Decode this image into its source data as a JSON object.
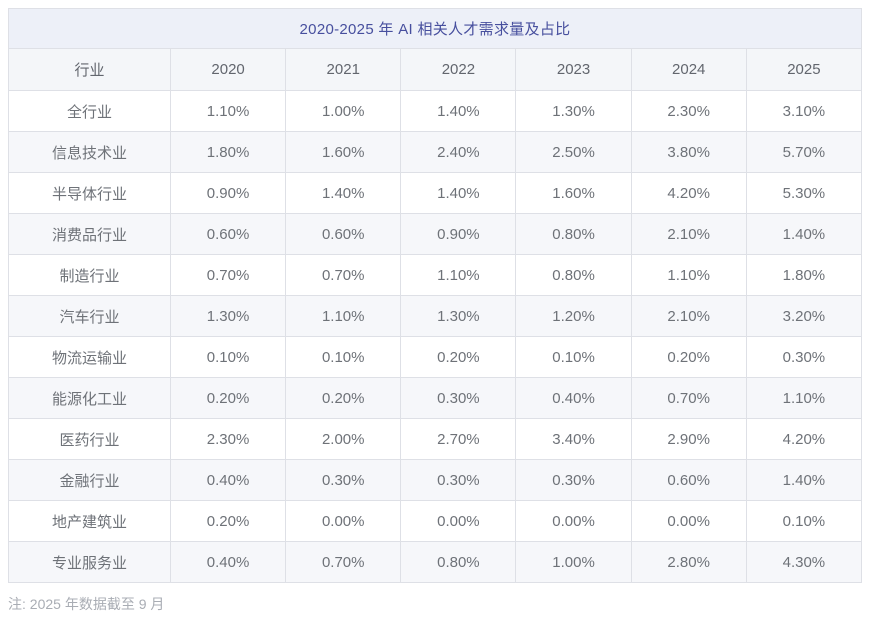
{
  "chart_data": {
    "type": "table",
    "title": "2020-2025 年 AI 相关人才需求量及占比",
    "columns": [
      "行业",
      "2020",
      "2021",
      "2022",
      "2023",
      "2024",
      "2025"
    ],
    "rows": [
      {
        "label": "全行业",
        "values": [
          "1.10%",
          "1.00%",
          "1.40%",
          "1.30%",
          "2.30%",
          "3.10%"
        ]
      },
      {
        "label": "信息技术业",
        "values": [
          "1.80%",
          "1.60%",
          "2.40%",
          "2.50%",
          "3.80%",
          "5.70%"
        ]
      },
      {
        "label": "半导体行业",
        "values": [
          "0.90%",
          "1.40%",
          "1.40%",
          "1.60%",
          "4.20%",
          "5.30%"
        ]
      },
      {
        "label": "消费品行业",
        "values": [
          "0.60%",
          "0.60%",
          "0.90%",
          "0.80%",
          "2.10%",
          "1.40%"
        ]
      },
      {
        "label": "制造行业",
        "values": [
          "0.70%",
          "0.70%",
          "1.10%",
          "0.80%",
          "1.10%",
          "1.80%"
        ]
      },
      {
        "label": "汽车行业",
        "values": [
          "1.30%",
          "1.10%",
          "1.30%",
          "1.20%",
          "2.10%",
          "3.20%"
        ]
      },
      {
        "label": "物流运输业",
        "values": [
          "0.10%",
          "0.10%",
          "0.20%",
          "0.10%",
          "0.20%",
          "0.30%"
        ]
      },
      {
        "label": "能源化工业",
        "values": [
          "0.20%",
          "0.20%",
          "0.30%",
          "0.40%",
          "0.70%",
          "1.10%"
        ]
      },
      {
        "label": "医药行业",
        "values": [
          "2.30%",
          "2.00%",
          "2.70%",
          "3.40%",
          "2.90%",
          "4.20%"
        ]
      },
      {
        "label": "金融行业",
        "values": [
          "0.40%",
          "0.30%",
          "0.30%",
          "0.30%",
          "0.60%",
          "1.40%"
        ]
      },
      {
        "label": "地产建筑业",
        "values": [
          "0.20%",
          "0.00%",
          "0.00%",
          "0.00%",
          "0.00%",
          "0.10%"
        ]
      },
      {
        "label": "专业服务业",
        "values": [
          "0.40%",
          "0.70%",
          "0.80%",
          "1.00%",
          "2.80%",
          "4.30%"
        ]
      }
    ],
    "footnote": "注: 2025 年数据截至 9 月",
    "layout": {
      "grid": true,
      "striped": true,
      "stripe_on": "even-rows"
    }
  },
  "colors": {
    "title_text": "#474f9e",
    "title_bg": "#edf0f8",
    "header_bg": "#f4f6f9",
    "stripe_bg": "#f6f7fa",
    "row_bg": "#ffffff",
    "border": "#dee0e6",
    "cell_text": "#6e7278",
    "header_text": "#62666e",
    "note_text": "#a9adb4"
  }
}
